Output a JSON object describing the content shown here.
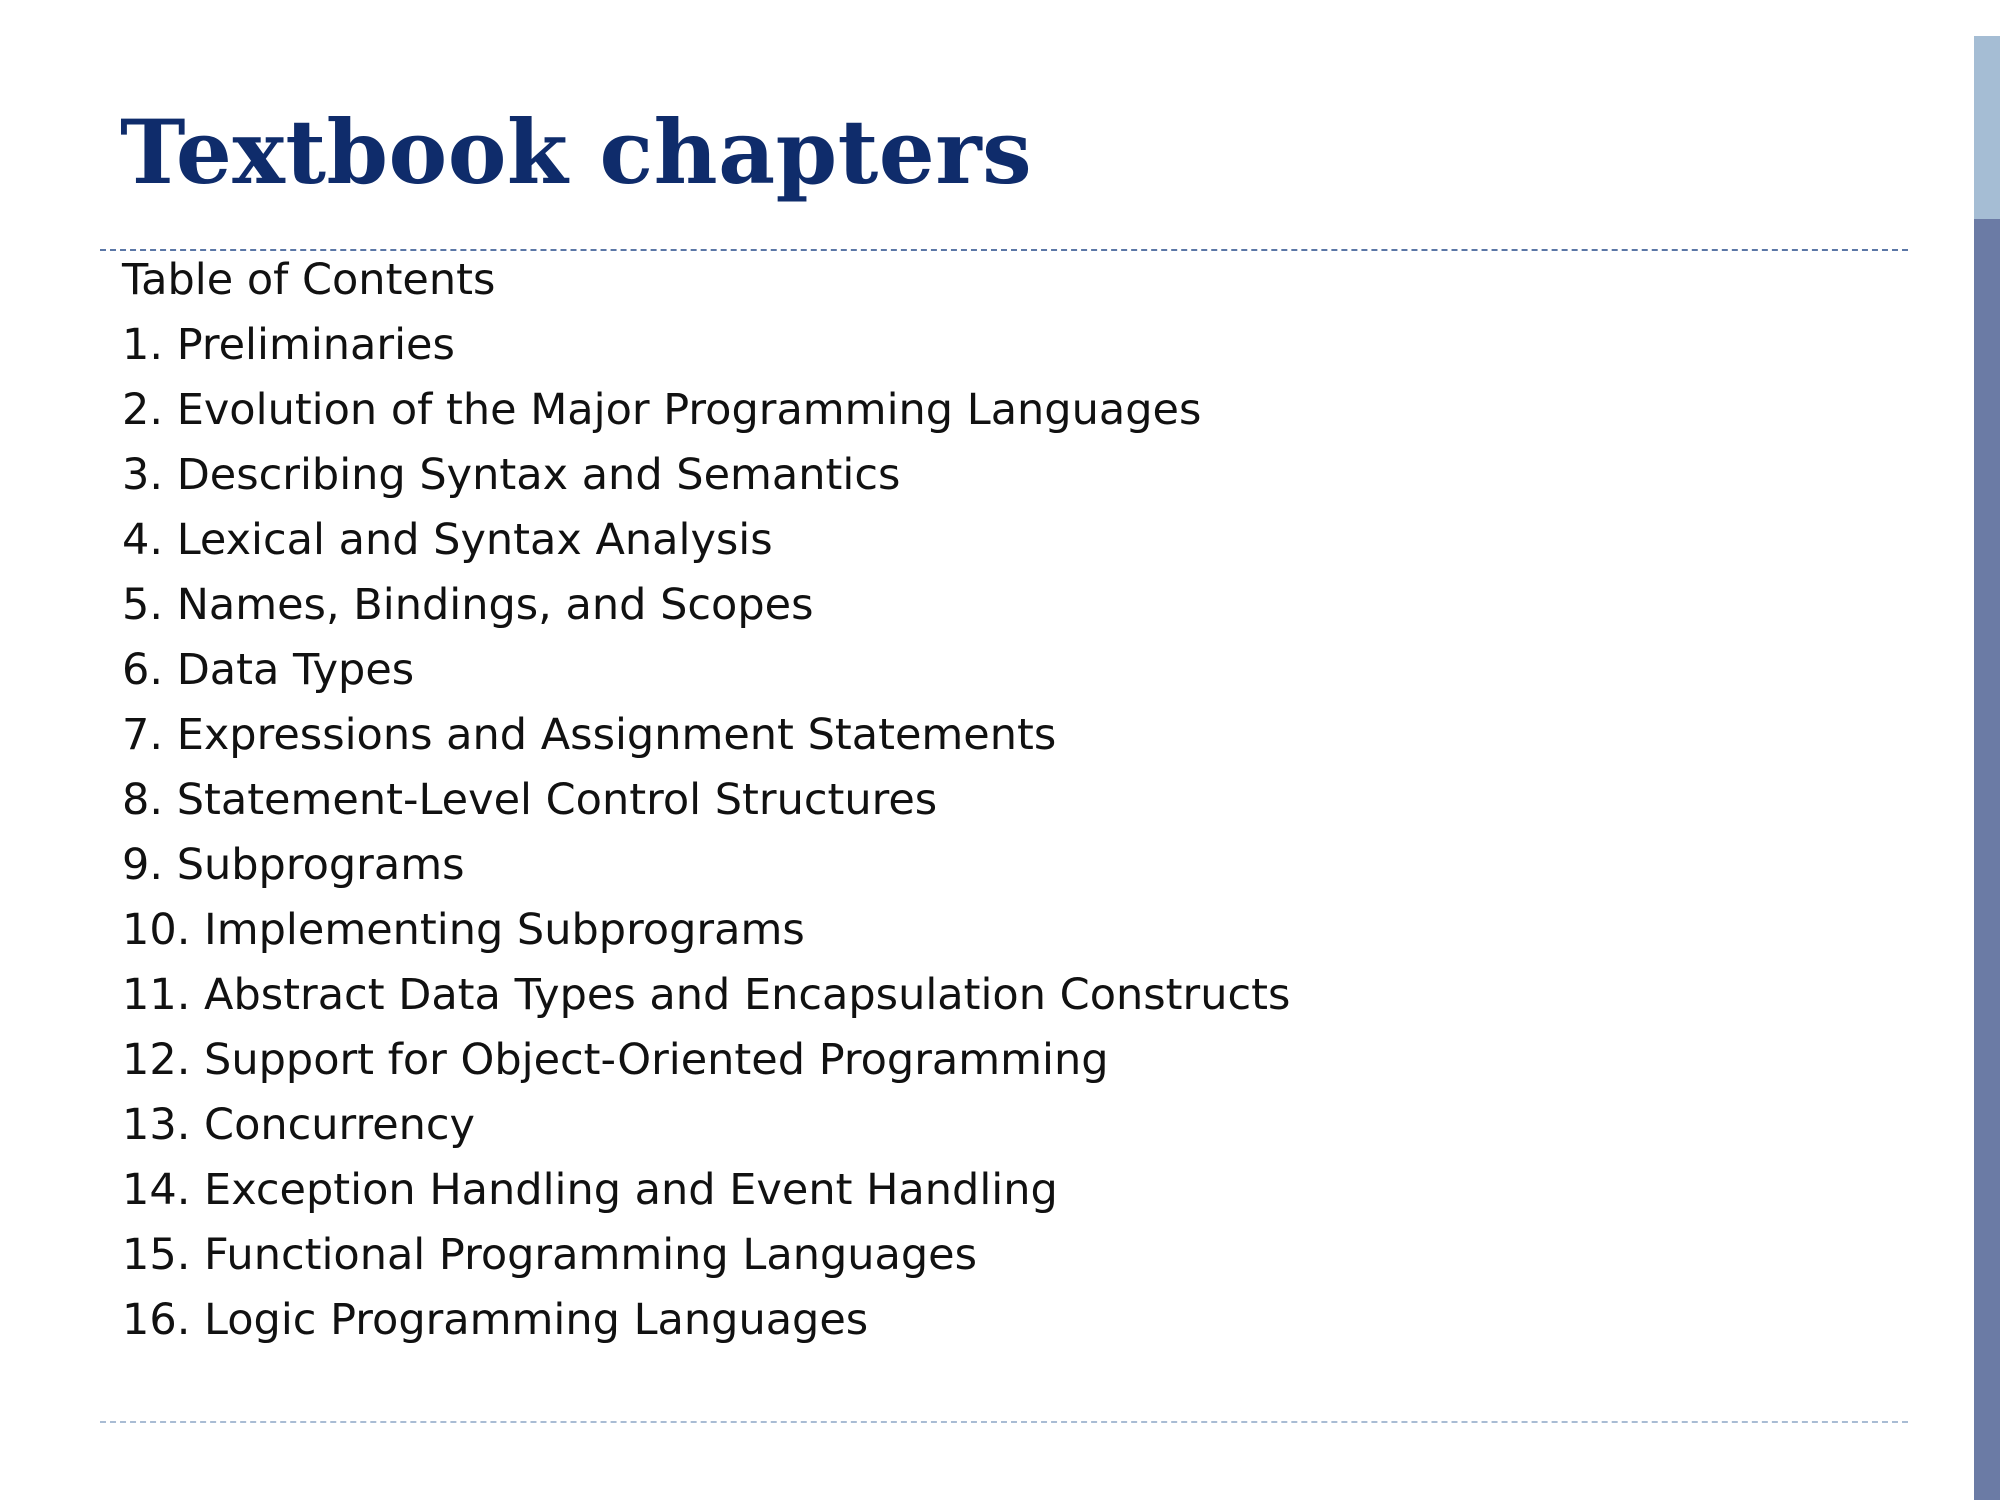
{
  "slide": {
    "title": "Textbook chapters",
    "toc_heading": "Table of Contents",
    "chapters": [
      "1. Preliminaries",
      "2. Evolution of the Major Programming Languages",
      "3. Describing Syntax and Semantics",
      "4. Lexical and Syntax Analysis",
      "5. Names, Bindings, and Scopes",
      "6. Data Types",
      "7. Expressions and Assignment Statements",
      "8. Statement-Level Control Structures",
      "9. Subprograms",
      "10. Implementing Subprograms",
      "11. Abstract Data Types and Encapsulation Constructs",
      "12. Support for Object-Oriented Programming",
      "13. Concurrency",
      "14. Exception Handling and Event Handling",
      "15. Functional Programming Languages",
      "16. Logic Programming Languages"
    ]
  },
  "colors": {
    "title": "#0f2c6b",
    "body_text": "#111111",
    "rule_top": "#5b77a6",
    "rule_bottom": "#a9bcd4",
    "sidebar_light": "#a5bdd4",
    "sidebar_dark": "#6b7ba5"
  }
}
